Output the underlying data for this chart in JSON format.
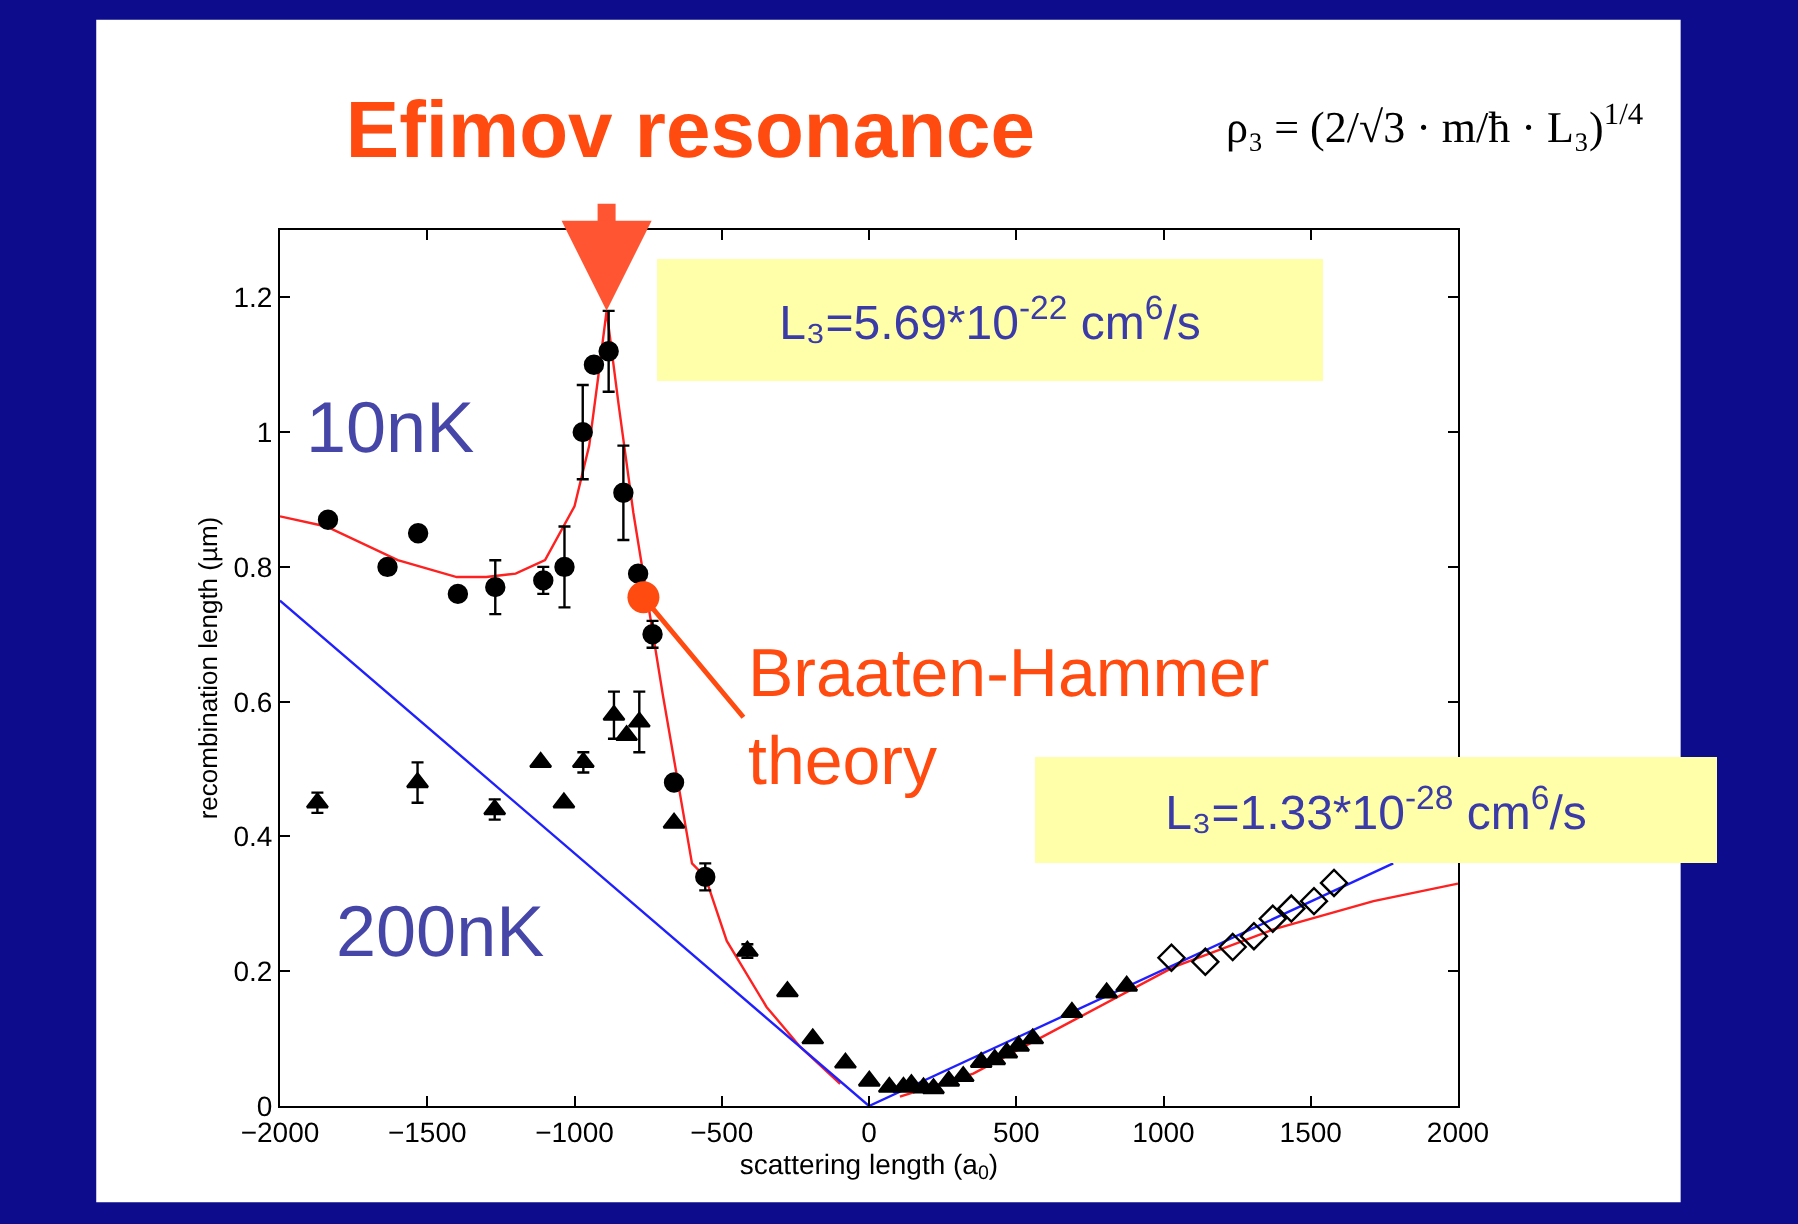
{
  "chart_data": {
    "type": "scatter",
    "title": "Efimov resonance",
    "xlabel": "scattering length (a$_{0}$)",
    "ylabel": "recombination length (µm)",
    "xlim": [
      -2000,
      2000
    ],
    "xticks": [
      {
        "value": -2000,
        "label": "−2000"
      },
      {
        "value": -1500,
        "label": "−1500"
      },
      {
        "value": -1000,
        "label": "−1000"
      },
      {
        "value": -500,
        "label": "−500"
      },
      0,
      500,
      1000,
      1500,
      2000
    ],
    "ylim": [
      0,
      1.3
    ],
    "yticks": [
      0,
      0.2,
      0.4,
      0.6,
      0.8,
      1,
      1.2
    ],
    "series": [
      {
        "type": "line",
        "color": "#ff2020",
        "marker": "none",
        "x": [
          -2000,
          -1843,
          -1600,
          -1400,
          -1300,
          -1200,
          -1100,
          -1000,
          -950,
          -920,
          -891,
          -850,
          -800,
          -700,
          -601,
          -556,
          -483,
          -348,
          -234,
          -98,
          0,
          105,
          354,
          694,
          1034,
          1373,
          1713,
          2000
        ],
        "values": [
          0.875,
          0.86,
          0.81,
          0.785,
          0.785,
          0.79,
          0.81,
          0.89,
          0.98,
          1.08,
          1.18,
          1.04,
          0.88,
          0.61,
          0.36,
          0.34,
          0.245,
          0.147,
          0.088,
          0.033,
          null,
          0.014,
          0.048,
          0.127,
          0.206,
          0.262,
          0.304,
          0.33
        ]
      },
      {
        "type": "line",
        "color": "#2020ff",
        "marker": "none",
        "x": [
          -2000,
          0,
          1780
        ],
        "values": [
          0.75,
          0,
          0.36
        ]
      },
      {
        "color": "#000000",
        "marker": "circle",
        "x": [
          -1837,
          -1635,
          -1531,
          -1396,
          -1269,
          -1106,
          -1034,
          -972,
          -934,
          -884,
          -834,
          -784,
          -735,
          -662,
          -556
        ],
        "values": [
          0.87,
          0.8,
          0.85,
          0.76,
          0.77,
          0.78,
          0.8,
          1.0,
          1.1,
          1.12,
          0.91,
          0.79,
          0.7,
          0.48,
          0.34
        ],
        "errors": [
          null,
          null,
          null,
          null,
          0.04,
          0.02,
          0.06,
          0.07,
          null,
          0.06,
          0.07,
          null,
          0.02,
          null,
          0.02
        ]
      },
      {
        "color": "#000000",
        "marker": "triangle",
        "x": [
          -1873,
          -1533,
          -1271,
          -1115,
          -1036,
          -970,
          -866,
          -823,
          -780,
          -662,
          -413,
          -277,
          -191,
          -80,
          1,
          69,
          117,
          144,
          185,
          219,
          271,
          320,
          381,
          427,
          468,
          508,
          556,
          689,
          807,
          875
        ],
        "values": [
          0.45,
          0.48,
          0.44,
          0.51,
          0.45,
          0.51,
          0.58,
          0.55,
          0.57,
          0.42,
          0.23,
          0.17,
          0.1,
          0.064,
          0.037,
          0.028,
          0.028,
          0.032,
          0.027,
          0.026,
          0.037,
          0.044,
          0.065,
          0.069,
          0.079,
          0.089,
          0.1,
          0.139,
          0.168,
          0.178
        ],
        "errors": [
          0.015,
          0.03,
          0.015,
          null,
          null,
          0.015,
          0.035,
          null,
          0.045,
          null,
          0.01,
          null,
          null,
          null,
          null,
          null,
          null,
          null,
          null,
          null,
          null,
          null,
          null,
          null,
          null,
          null,
          null,
          null,
          null,
          null
        ]
      },
      {
        "color": "#000000",
        "marker": "diamond-open",
        "x": [
          1027,
          1142,
          1235,
          1307,
          1371,
          1434,
          1511,
          1579
        ],
        "values": [
          0.22,
          0.214,
          0.236,
          0.252,
          0.278,
          0.293,
          0.304,
          0.331
        ]
      }
    ],
    "annotations": [
      "ρ₃ = (2/√3 · m/ħ · L₃)$^{1/4}$",
      "L₃=5.69*10$^{-22}$ cm$^{6}$/s",
      "L₃=1.33*10$^{-28}$ cm$^{6}$/s",
      {
        "text": "Braaten-Hammer theory",
        "x": -766,
        "y": 0.755
      },
      "10nK",
      "200nK"
    ]
  }
}
